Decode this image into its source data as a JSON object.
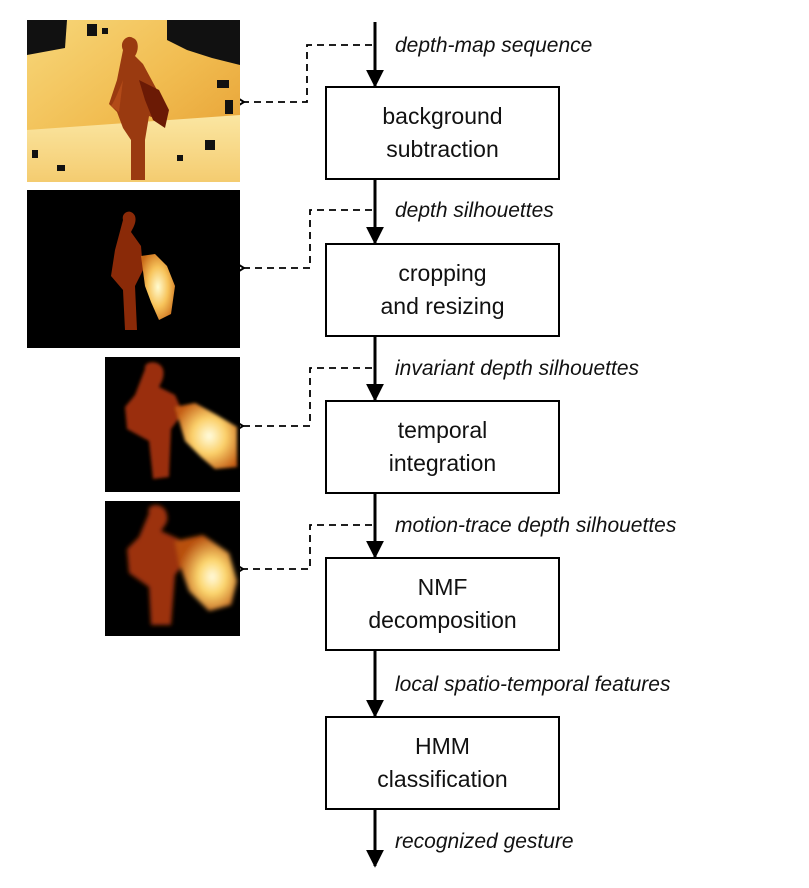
{
  "stages": [
    {
      "line1": "background",
      "line2": "subtraction"
    },
    {
      "line1": "cropping",
      "line2": "and resizing"
    },
    {
      "line1": "temporal",
      "line2": "integration"
    },
    {
      "line1": "NMF",
      "line2": "decomposition"
    },
    {
      "line1": "HMM",
      "line2": "classification"
    }
  ],
  "flow_labels": [
    "depth-map sequence",
    "depth silhouettes",
    "invariant depth silhouettes",
    "motion-trace depth silhouettes",
    "local spatio-temporal features",
    "recognized gesture"
  ],
  "colors": {
    "line": "#000000",
    "box_border": "#000000",
    "depth_background": "#f2c25a",
    "silhouette_dark": "#8a2a08",
    "silhouette_bright": "#fff2a8",
    "thumb_background": "#000000"
  }
}
